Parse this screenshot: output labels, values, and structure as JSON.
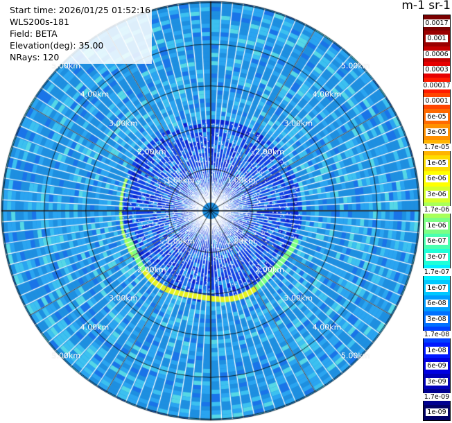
{
  "header": {
    "start_time": "Start time: 2026/01/25 01:52:16",
    "instrument": "WLS200s-181",
    "field": "Field: BETA",
    "elevation": "Elevation(deg): 35.00",
    "nrays": "NRays: 120"
  },
  "colorbar": {
    "units_title": "m-1 sr-1",
    "labels": [
      "0.0017",
      "0.001",
      "0.0006",
      "0.0003",
      "0.00017",
      "0.0001",
      "6e-05",
      "3e-05",
      "1.7e-05",
      "1e-05",
      "6e-06",
      "3e-06",
      "1.7e-06",
      "1e-06",
      "6e-07",
      "3e-07",
      "1.7e-07",
      "1e-07",
      "6e-08",
      "3e-08",
      "1.7e-08",
      "1e-08",
      "6e-09",
      "3e-09",
      "1.7e-09",
      "1e-09"
    ],
    "colors": [
      "#7a0000",
      "#9a0000",
      "#c40000",
      "#e60000",
      "#ff1a00",
      "#ff4500",
      "#ff6a00",
      "#ff9000",
      "#ffb400",
      "#ffdc00",
      "#ffff00",
      "#d6ff2a",
      "#a8ff5a",
      "#7cff84",
      "#4affb0",
      "#1effd8",
      "#00f0ff",
      "#00c8ff",
      "#009cff",
      "#0070ff",
      "#0040ff",
      "#0018ff",
      "#0000e0",
      "#0000b8",
      "#00008f",
      "#000066"
    ]
  },
  "range_rings": {
    "labels": [
      "1.00km",
      "2.00km",
      "3.00km",
      "4.00km",
      "5.00km"
    ]
  },
  "plot": {
    "nrays": 120,
    "background_color": "#1e8fe0",
    "grid_color": "#000000"
  }
}
